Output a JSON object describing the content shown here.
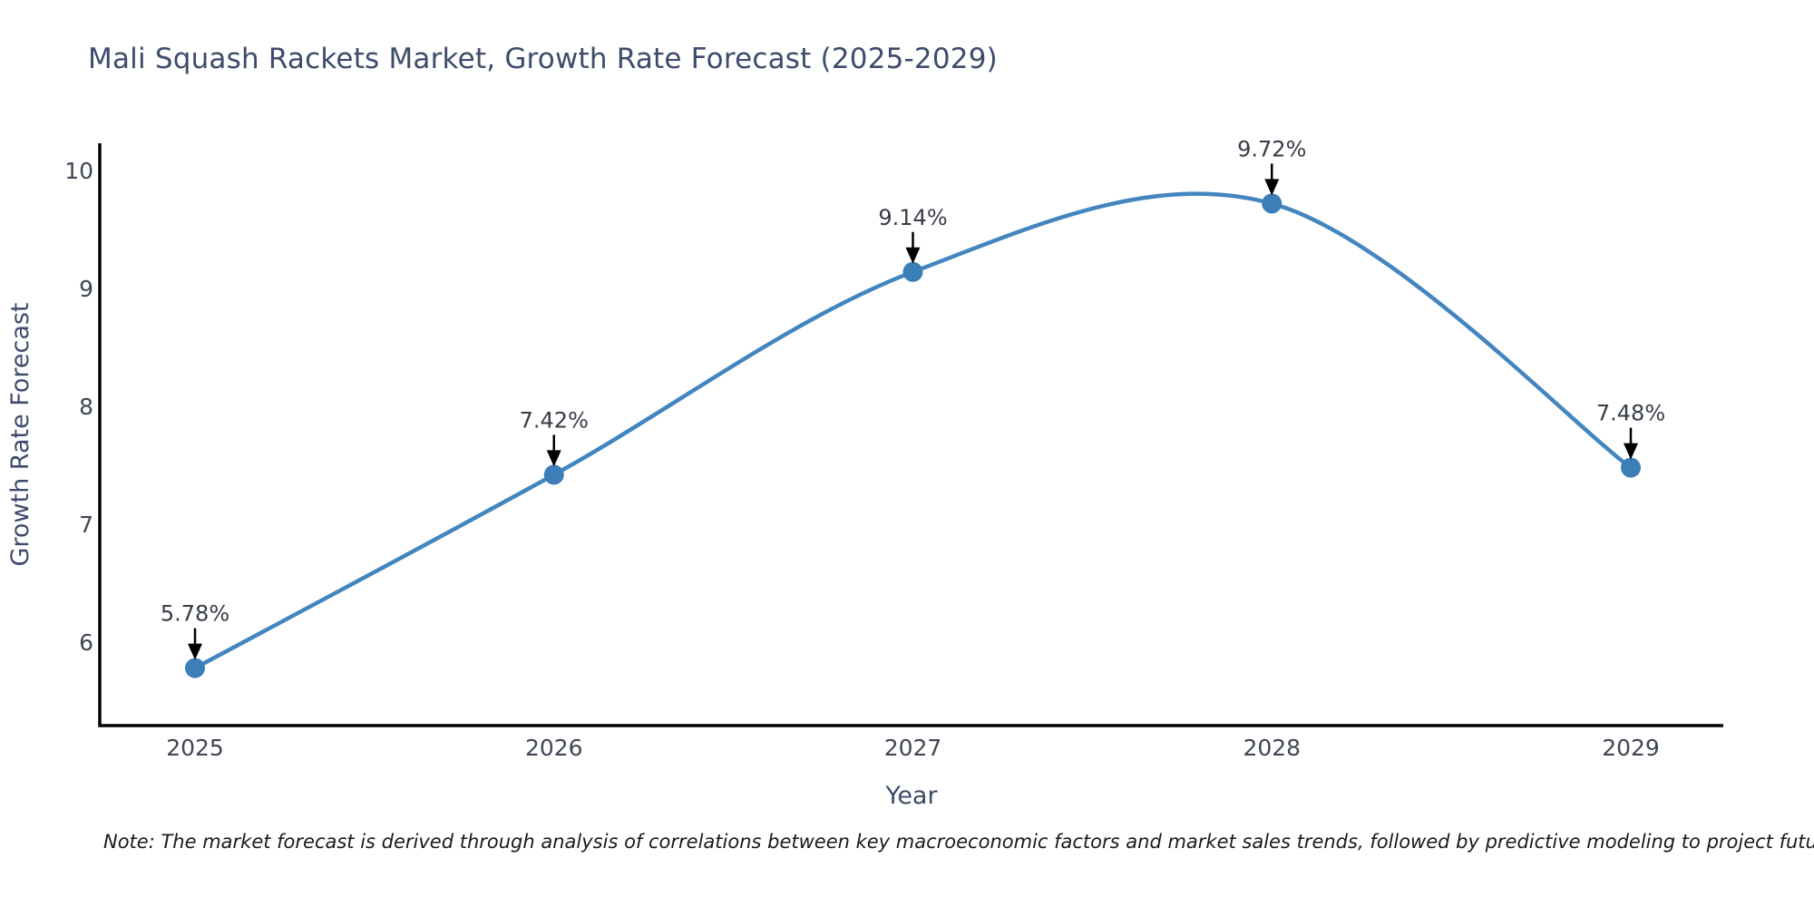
{
  "title": "Mali Squash Rackets Market, Growth Rate Forecast (2025-2029)",
  "note": "Note: The market forecast is derived through analysis of correlations between key macroeconomic factors and market sales trends, followed by predictive modeling to project future sales.",
  "chart_data": {
    "type": "line",
    "title": "Mali Squash Rackets Market, Growth Rate Forecast (2025-2029)",
    "xlabel": "Year",
    "ylabel": "Growth Rate Forecast",
    "categories": [
      "2025",
      "2026",
      "2027",
      "2028",
      "2029"
    ],
    "series": [
      {
        "name": "Growth Rate Forecast",
        "values": [
          5.78,
          7.42,
          9.14,
          9.72,
          7.48
        ]
      }
    ],
    "data_labels": [
      "5.78%",
      "7.42%",
      "9.14%",
      "9.72%",
      "7.48%"
    ],
    "yticks": [
      6,
      7,
      8,
      9,
      10
    ],
    "ylim": [
      5.5,
      10.45
    ],
    "grid": false,
    "legend": false,
    "line_style": "spline",
    "markers": true,
    "annotations": "value labels with downward black arrows above each point",
    "line_color": "#4285bf",
    "marker_color": "#3c7fb8",
    "axis_color": "#000000",
    "arrow_color": "#000000"
  },
  "colors": {
    "title": "#3e4b6b",
    "tick": "#3f4654",
    "axis_label": "#3e4b6b",
    "annotation": "#363c47",
    "note": "#1a1a1a",
    "background": "#ffffff"
  }
}
